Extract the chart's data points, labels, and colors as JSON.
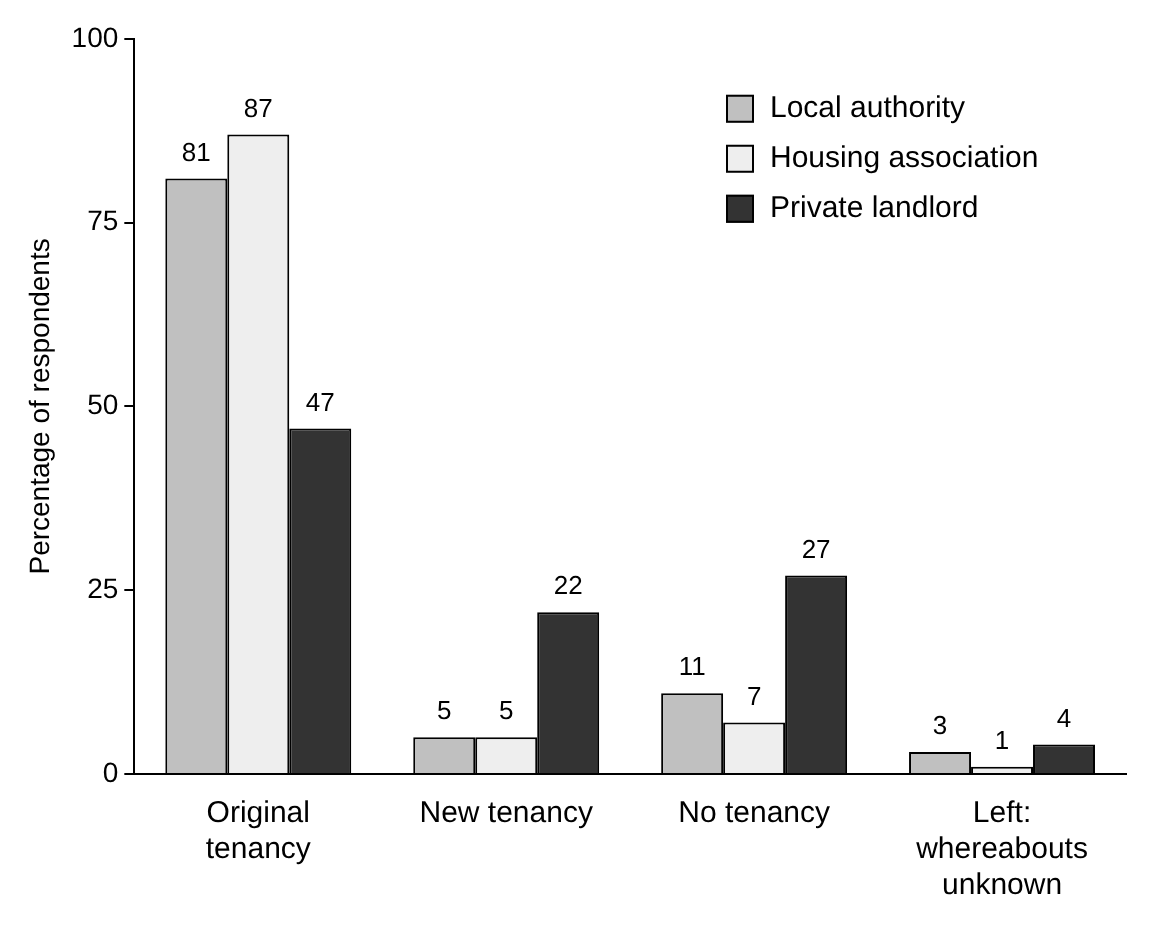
{
  "chart_data": {
    "type": "bar",
    "ylabel": "Percentage of respondents",
    "categories": [
      "Original tenancy",
      "New tenancy",
      "No tenancy",
      "Left: whereabouts unknown"
    ],
    "series": [
      {
        "name": "Local authority",
        "color": "#c0c0c0",
        "values": [
          81,
          5,
          11,
          3
        ]
      },
      {
        "name": "Housing association",
        "color": "#eeeeee",
        "values": [
          87,
          5,
          7,
          1
        ]
      },
      {
        "name": "Private landlord",
        "color": "#333333",
        "values": [
          47,
          22,
          27,
          4
        ]
      }
    ],
    "ylim": [
      0,
      100
    ],
    "yticks": [
      0,
      25,
      50,
      75,
      100
    ],
    "grid": false,
    "legend": "top right",
    "data_labels": true
  }
}
